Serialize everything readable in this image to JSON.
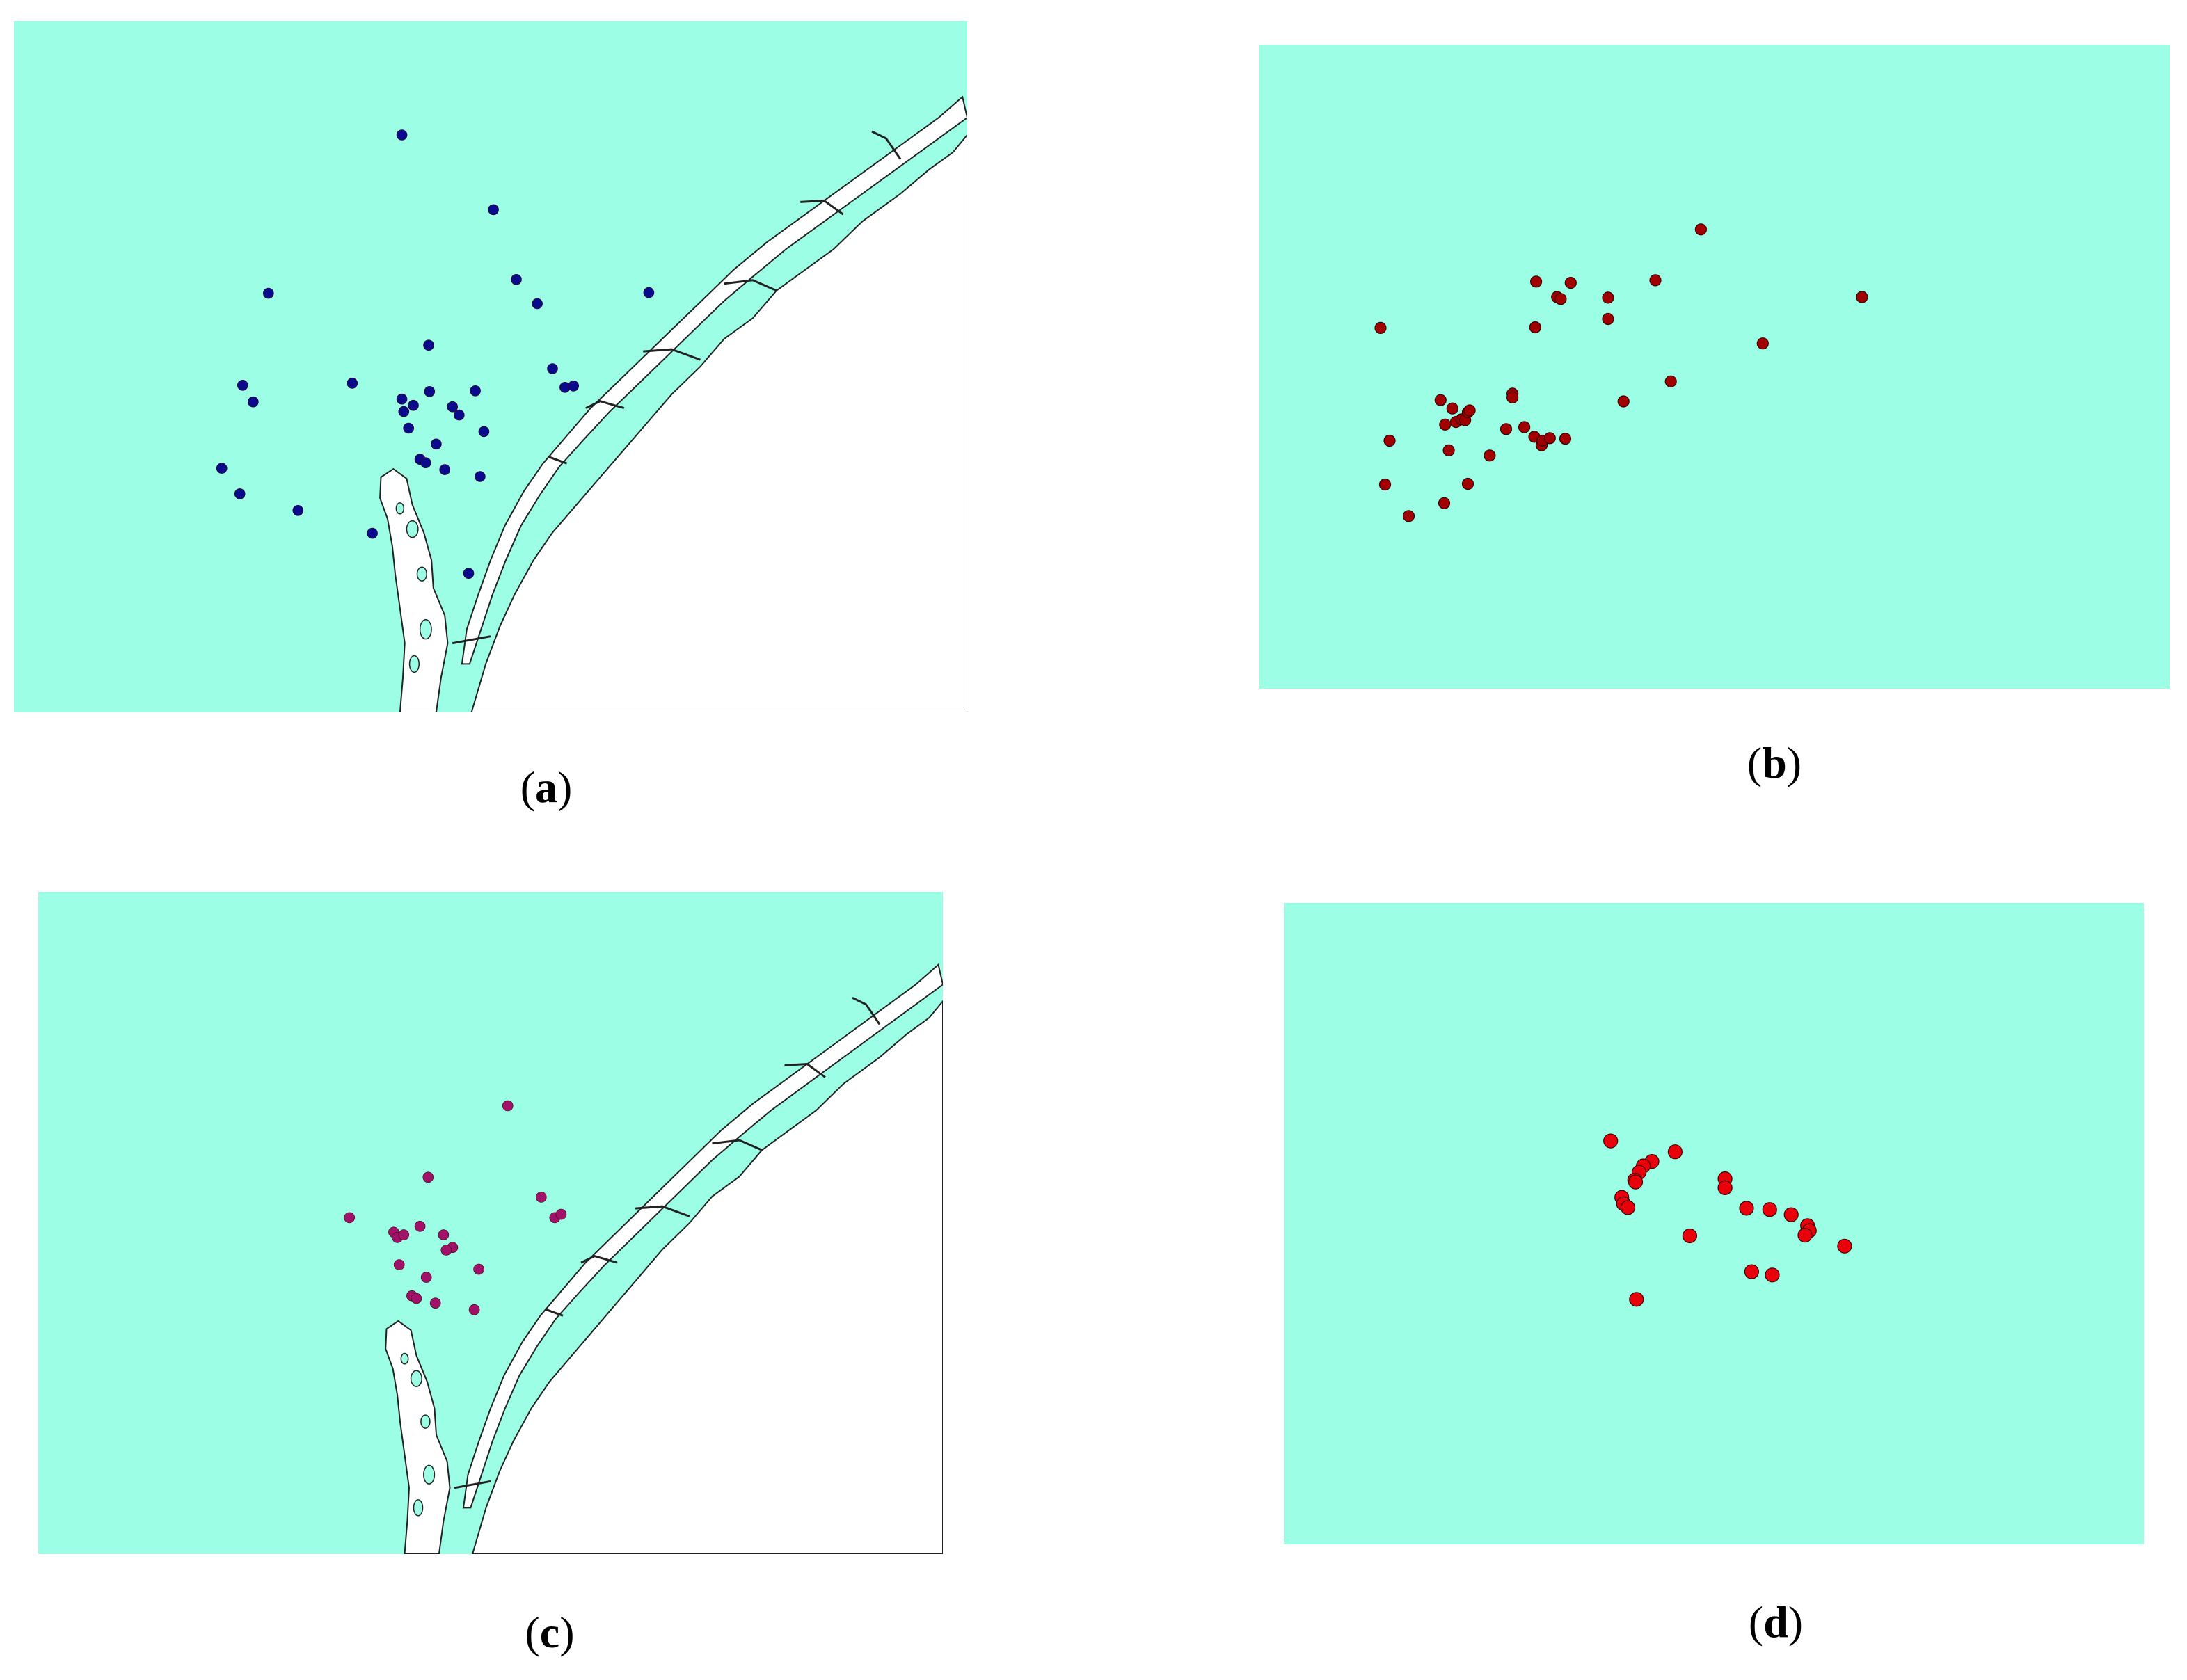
{
  "colors": {
    "water": "#9cfee5",
    "land": "#ffffff",
    "coastline": "#222222",
    "points_a": "#0a0a8c",
    "points_b": "#a00000",
    "points_c": "#a0116a",
    "points_d": "#e8000a"
  },
  "panels": [
    {
      "id": "a",
      "caption": "(a)",
      "letter": "a",
      "map_background": "coastline",
      "point_color": "points_a",
      "points": [
        [
          0.407,
          0.165
        ],
        [
          0.503,
          0.273
        ],
        [
          0.527,
          0.374
        ],
        [
          0.549,
          0.409
        ],
        [
          0.666,
          0.393
        ],
        [
          0.267,
          0.394
        ],
        [
          0.435,
          0.469
        ],
        [
          0.355,
          0.524
        ],
        [
          0.24,
          0.527
        ],
        [
          0.251,
          0.551
        ],
        [
          0.407,
          0.547
        ],
        [
          0.409,
          0.565
        ],
        [
          0.419,
          0.556
        ],
        [
          0.436,
          0.536
        ],
        [
          0.46,
          0.558
        ],
        [
          0.467,
          0.57
        ],
        [
          0.484,
          0.535
        ],
        [
          0.414,
          0.589
        ],
        [
          0.443,
          0.612
        ],
        [
          0.426,
          0.634
        ],
        [
          0.432,
          0.639
        ],
        [
          0.452,
          0.649
        ],
        [
          0.493,
          0.594
        ],
        [
          0.489,
          0.659
        ],
        [
          0.565,
          0.503
        ],
        [
          0.578,
          0.53
        ],
        [
          0.587,
          0.528
        ],
        [
          0.218,
          0.647
        ],
        [
          0.237,
          0.684
        ],
        [
          0.298,
          0.708
        ],
        [
          0.376,
          0.741
        ],
        [
          0.477,
          0.799
        ]
      ]
    },
    {
      "id": "b",
      "caption": "(b)",
      "letter": "b",
      "map_background": "none",
      "point_color": "points_b",
      "points": [
        [
          0.303,
          0.439
        ],
        [
          0.304,
          0.368
        ],
        [
          0.327,
          0.392
        ],
        [
          0.331,
          0.395
        ],
        [
          0.342,
          0.37
        ],
        [
          0.383,
          0.393
        ],
        [
          0.383,
          0.426
        ],
        [
          0.435,
          0.366
        ],
        [
          0.485,
          0.287
        ],
        [
          0.553,
          0.464
        ],
        [
          0.662,
          0.392
        ],
        [
          0.133,
          0.44
        ],
        [
          0.143,
          0.615
        ],
        [
          0.138,
          0.683
        ],
        [
          0.164,
          0.732
        ],
        [
          0.199,
          0.552
        ],
        [
          0.204,
          0.59
        ],
        [
          0.212,
          0.565
        ],
        [
          0.203,
          0.712
        ],
        [
          0.208,
          0.63
        ],
        [
          0.216,
          0.586
        ],
        [
          0.222,
          0.582
        ],
        [
          0.226,
          0.583
        ],
        [
          0.229,
          0.571
        ],
        [
          0.231,
          0.568
        ],
        [
          0.229,
          0.682
        ],
        [
          0.253,
          0.638
        ],
        [
          0.271,
          0.597
        ],
        [
          0.278,
          0.542
        ],
        [
          0.278,
          0.548
        ],
        [
          0.291,
          0.594
        ],
        [
          0.302,
          0.609
        ],
        [
          0.31,
          0.622
        ],
        [
          0.311,
          0.615
        ],
        [
          0.319,
          0.611
        ],
        [
          0.336,
          0.612
        ],
        [
          0.4,
          0.554
        ],
        [
          0.452,
          0.523
        ]
      ]
    },
    {
      "id": "c",
      "caption": "(c)",
      "letter": "c",
      "map_background": "coastline",
      "point_color": "points_c",
      "points": [
        [
          0.519,
          0.323
        ],
        [
          0.431,
          0.431
        ],
        [
          0.344,
          0.492
        ],
        [
          0.393,
          0.514
        ],
        [
          0.397,
          0.522
        ],
        [
          0.404,
          0.518
        ],
        [
          0.422,
          0.505
        ],
        [
          0.448,
          0.518
        ],
        [
          0.458,
          0.537
        ],
        [
          0.451,
          0.541
        ],
        [
          0.487,
          0.57
        ],
        [
          0.399,
          0.563
        ],
        [
          0.429,
          0.582
        ],
        [
          0.413,
          0.61
        ],
        [
          0.418,
          0.614
        ],
        [
          0.439,
          0.621
        ],
        [
          0.482,
          0.631
        ],
        [
          0.556,
          0.461
        ],
        [
          0.571,
          0.492
        ],
        [
          0.578,
          0.487
        ]
      ]
    },
    {
      "id": "d",
      "caption": "(d)",
      "letter": "d",
      "map_background": "none",
      "point_color": "points_d",
      "points": [
        [
          0.38,
          0.371
        ],
        [
          0.455,
          0.388
        ],
        [
          0.428,
          0.403
        ],
        [
          0.418,
          0.41
        ],
        [
          0.413,
          0.42
        ],
        [
          0.408,
          0.432
        ],
        [
          0.409,
          0.435
        ],
        [
          0.393,
          0.459
        ],
        [
          0.395,
          0.469
        ],
        [
          0.4,
          0.475
        ],
        [
          0.41,
          0.618
        ],
        [
          0.472,
          0.519
        ],
        [
          0.513,
          0.43
        ],
        [
          0.513,
          0.444
        ],
        [
          0.538,
          0.476
        ],
        [
          0.565,
          0.478
        ],
        [
          0.59,
          0.486
        ],
        [
          0.609,
          0.503
        ],
        [
          0.611,
          0.511
        ],
        [
          0.606,
          0.518
        ],
        [
          0.652,
          0.535
        ],
        [
          0.544,
          0.575
        ],
        [
          0.568,
          0.58
        ]
      ]
    }
  ]
}
